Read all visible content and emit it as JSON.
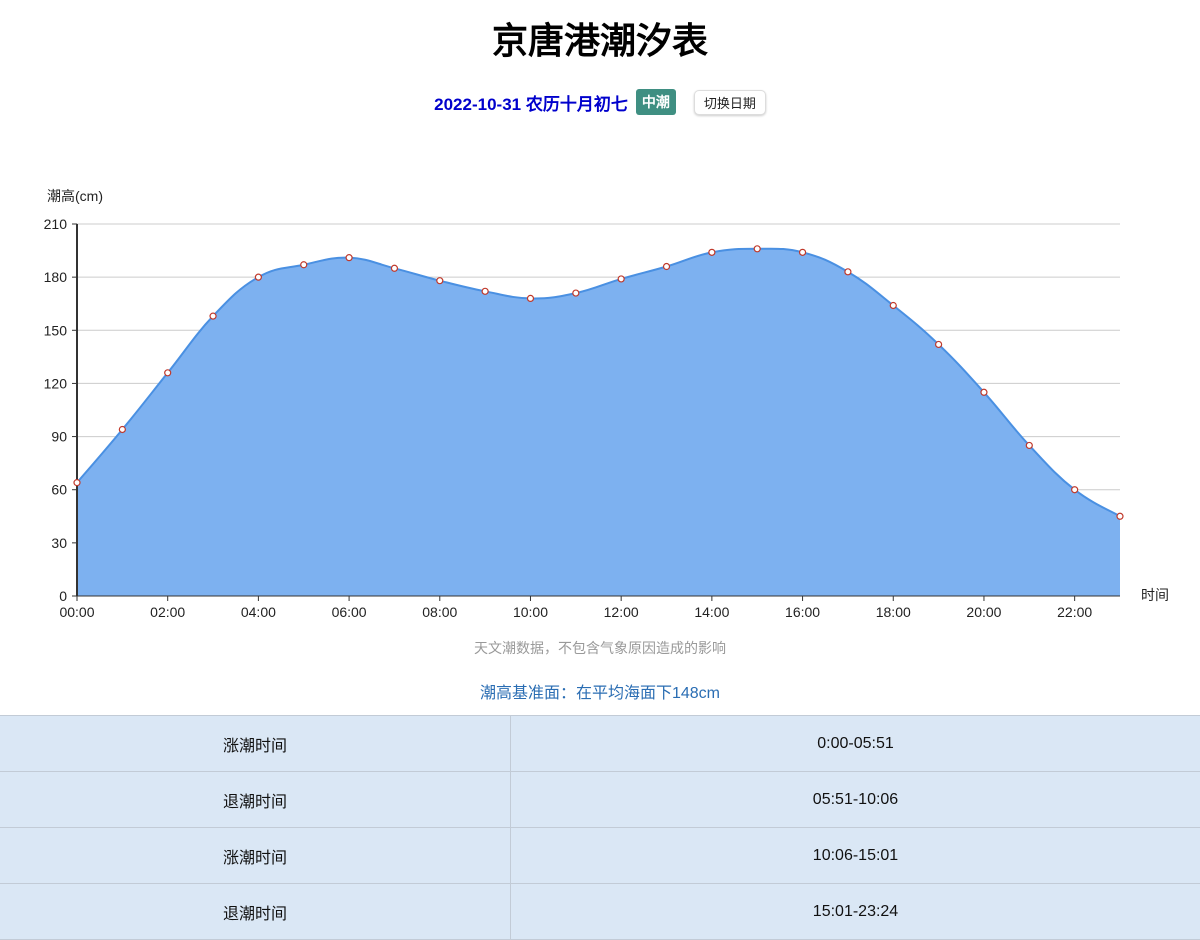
{
  "title": "京唐港潮汐表",
  "subtitle": {
    "date": "2022-10-31 农历十月初七",
    "tide_type": "中潮",
    "switch_date_label": "切换日期"
  },
  "colors": {
    "fill": "#7db1f0",
    "line": "#4a90e2",
    "point_stroke": "#c0392b",
    "badge": "#3f8f82",
    "date": "#0000cc"
  },
  "chart_data": {
    "type": "area",
    "ylabel": "潮高(cm)",
    "xlabel": "时间",
    "ylim": [
      0,
      210
    ],
    "yticks": [
      0,
      30,
      60,
      90,
      120,
      150,
      180,
      210
    ],
    "x": [
      "00:00",
      "01:00",
      "02:00",
      "03:00",
      "04:00",
      "05:00",
      "06:00",
      "07:00",
      "08:00",
      "09:00",
      "10:00",
      "11:00",
      "12:00",
      "13:00",
      "14:00",
      "15:00",
      "16:00",
      "17:00",
      "18:00",
      "19:00",
      "20:00",
      "21:00",
      "22:00",
      "23:00"
    ],
    "xtick_labels": [
      "00:00",
      "02:00",
      "04:00",
      "06:00",
      "08:00",
      "10:00",
      "12:00",
      "14:00",
      "16:00",
      "18:00",
      "20:00",
      "22:00"
    ],
    "values": [
      64,
      94,
      126,
      158,
      180,
      187,
      191,
      185,
      178,
      172,
      168,
      171,
      179,
      186,
      194,
      196,
      194,
      183,
      164,
      142,
      115,
      85,
      60,
      45
    ],
    "grid": true,
    "smooth": true
  },
  "note": "天文潮数据，不包含气象原因造成的影响",
  "datum": "潮高基准面：在平均海面下148cm",
  "table": [
    {
      "label": "涨潮时间",
      "value": "0:00-05:51"
    },
    {
      "label": "退潮时间",
      "value": "05:51-10:06"
    },
    {
      "label": "涨潮时间",
      "value": "10:06-15:01"
    },
    {
      "label": "退潮时间",
      "value": "15:01-23:24"
    }
  ]
}
